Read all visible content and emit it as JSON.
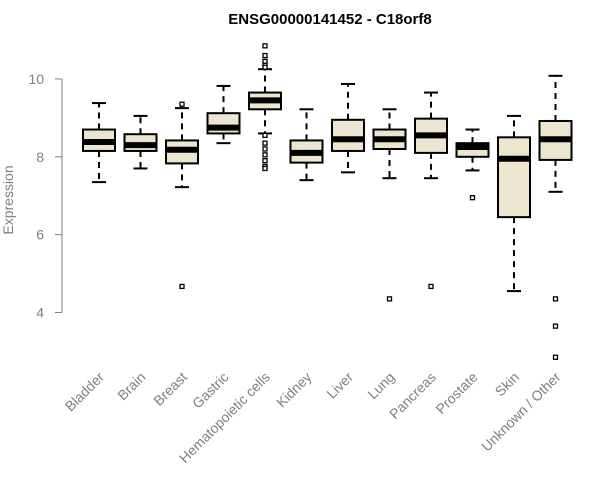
{
  "chart_data": {
    "type": "boxplot",
    "title": "ENSG00000141452 - C18orf8",
    "ylabel": "Expression",
    "ylim": [
      2.6,
      11.0
    ],
    "yticks": [
      4,
      6,
      8,
      10
    ],
    "ytick_labels": [
      "4",
      "6",
      "8",
      "10"
    ],
    "box_fill": "#ede6cf",
    "categories": [
      "Bladder",
      "Brain",
      "Breast",
      "Gastric",
      "Hematopoietic cells",
      "Kidney",
      "Liver",
      "Lung",
      "Pancreas",
      "Prostate",
      "Skin",
      "Unknown / Other"
    ],
    "boxes": [
      {
        "min": 7.35,
        "q1": 8.15,
        "median": 8.38,
        "q3": 8.7,
        "max": 9.38,
        "outliers": []
      },
      {
        "min": 7.7,
        "q1": 8.15,
        "median": 8.3,
        "q3": 8.58,
        "max": 9.05,
        "outliers": []
      },
      {
        "min": 7.22,
        "q1": 7.83,
        "median": 8.18,
        "q3": 8.42,
        "max": 9.25,
        "outliers": [
          9.35,
          4.67
        ]
      },
      {
        "min": 8.35,
        "q1": 8.6,
        "median": 8.75,
        "q3": 9.12,
        "max": 9.82,
        "outliers": []
      },
      {
        "min": 8.6,
        "q1": 9.22,
        "median": 9.45,
        "q3": 9.65,
        "max": 10.25,
        "outliers": [
          10.85,
          10.6,
          10.45,
          10.35,
          10.3,
          8.55,
          8.35,
          8.2,
          8.05,
          7.9,
          7.75,
          7.7
        ]
      },
      {
        "min": 7.4,
        "q1": 7.85,
        "median": 8.1,
        "q3": 8.42,
        "max": 9.22,
        "outliers": []
      },
      {
        "min": 7.6,
        "q1": 8.15,
        "median": 8.45,
        "q3": 8.95,
        "max": 9.87,
        "outliers": []
      },
      {
        "min": 7.45,
        "q1": 8.2,
        "median": 8.45,
        "q3": 8.7,
        "max": 9.22,
        "outliers": [
          4.35
        ]
      },
      {
        "min": 7.45,
        "q1": 8.1,
        "median": 8.55,
        "q3": 8.98,
        "max": 9.65,
        "outliers": [
          4.67
        ]
      },
      {
        "min": 7.65,
        "q1": 8.0,
        "median": 8.25,
        "q3": 8.35,
        "max": 8.7,
        "outliers": [
          6.95
        ]
      },
      {
        "min": 4.55,
        "q1": 6.45,
        "median": 7.95,
        "q3": 8.5,
        "max": 9.05,
        "outliers": []
      },
      {
        "min": 7.1,
        "q1": 7.92,
        "median": 8.45,
        "q3": 8.92,
        "max": 10.08,
        "outliers": [
          4.35,
          3.65,
          2.85
        ]
      }
    ]
  }
}
